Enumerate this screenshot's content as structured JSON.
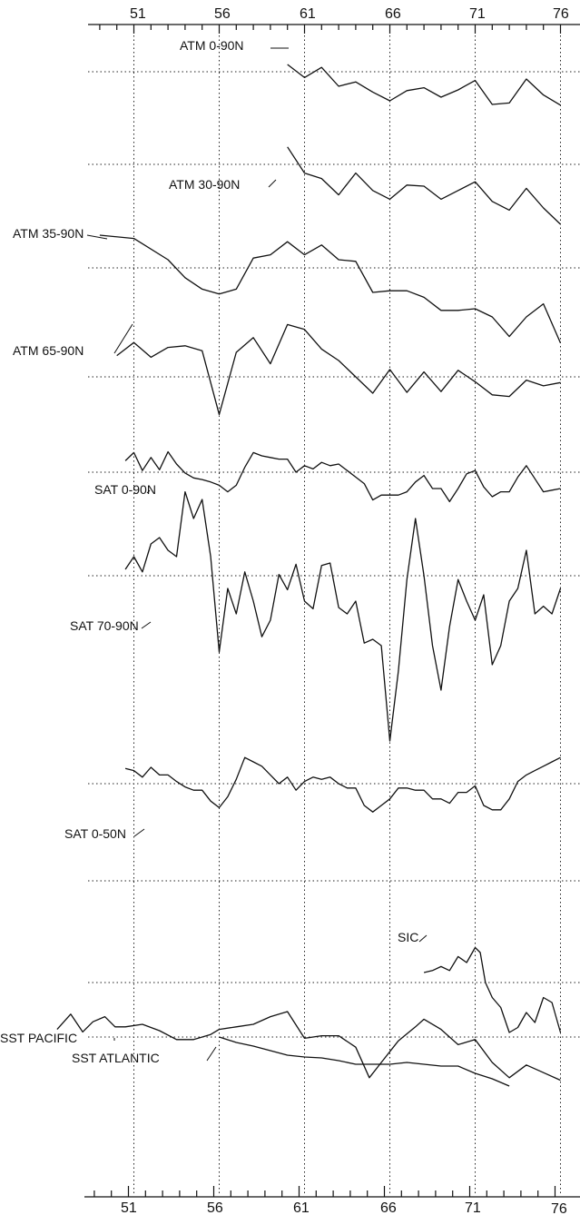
{
  "chart_data": {
    "type": "line",
    "x_ticks": [
      51,
      56,
      61,
      66,
      71,
      76
    ],
    "xlim": [
      46.5,
      76
    ],
    "grid": true,
    "series": [
      {
        "name": "ATM 0-90N",
        "x": [
          60,
          61,
          62,
          63,
          64,
          65,
          66,
          67,
          68,
          69,
          70,
          71,
          72,
          73,
          74,
          75,
          76
        ],
        "y": [
          1,
          -0.8,
          0.6,
          -2,
          -1.4,
          -2.8,
          -4,
          -2.6,
          -2.2,
          -3.5,
          -2.5,
          -1.2,
          -4.5,
          -4.3,
          -1,
          -3.2,
          -4.6
        ]
      },
      {
        "name": "ATM 30-90N",
        "x": [
          60,
          61,
          62,
          63,
          64,
          65,
          66,
          67,
          68,
          69,
          70,
          71,
          72,
          73,
          74,
          75,
          76
        ],
        "y": [
          1.6,
          -0.8,
          -1.3,
          -2.8,
          -0.8,
          -2.4,
          -3.2,
          -1.9,
          -2,
          -3.2,
          -2.4,
          -1.6,
          -3.4,
          -4.2,
          -2.2,
          -4,
          -5.5
        ]
      },
      {
        "name": "ATM 35-90N",
        "x": [
          49,
          51,
          53,
          54,
          55,
          56,
          57,
          58,
          59,
          60,
          61,
          62,
          63,
          64,
          65,
          66,
          67,
          68,
          69,
          70,
          71,
          72,
          73,
          74,
          75,
          76
        ],
        "y": [
          2,
          1.8,
          0.5,
          -0.6,
          -1.3,
          -1.6,
          -1.3,
          0.6,
          0.8,
          1.6,
          0.8,
          1.4,
          0.5,
          0.4,
          -1.5,
          -1.4,
          -1.4,
          -1.8,
          -2.6,
          -2.6,
          -2.5,
          -3,
          -4.2,
          -3,
          -2.2,
          -4.6
        ]
      },
      {
        "name": "ATM 65-90N",
        "x": [
          50,
          51,
          52,
          53,
          54,
          55,
          56,
          57,
          58,
          59,
          60,
          61,
          62,
          63,
          64,
          65,
          66,
          67,
          68,
          69,
          70,
          71,
          72,
          73,
          74,
          75,
          76
        ],
        "y": [
          2.6,
          4.2,
          2.4,
          3.6,
          3.8,
          3.2,
          -4.6,
          3,
          4.8,
          1.6,
          6.4,
          5.8,
          3.4,
          2,
          0,
          -2,
          0.9,
          -1.9,
          0.6,
          -1.8,
          0.8,
          -0.6,
          -2.2,
          -2.4,
          -0.4,
          -1.1,
          -0.7
        ]
      },
      {
        "name": "SAT 0-90N",
        "x": [
          50.5,
          51.0,
          51.5,
          52.0,
          52.5,
          53.0,
          53.5,
          54.0,
          54.5,
          55.0,
          55.5,
          56.0,
          56.5,
          57.0,
          57.5,
          58.0,
          58.5,
          59.0,
          59.5,
          60.0,
          60.5,
          61.0,
          61.5,
          62.0,
          62.5,
          63.0,
          63.5,
          64.0,
          64.5,
          65.0,
          65.5,
          66.0,
          66.5,
          67.0,
          67.5,
          68.0,
          68.5,
          69.0,
          69.5,
          70.0,
          70.5,
          71.0,
          71.5,
          72.0,
          72.5,
          73.0,
          73.5,
          74.0,
          74.5,
          75.0,
          75.5,
          76.0
        ],
        "y": [
          1.4,
          2.4,
          0.2,
          1.8,
          0.3,
          2.5,
          1.0,
          -0.1,
          -0.7,
          -0.9,
          -1.2,
          -1.6,
          -2.4,
          -1.6,
          0.6,
          2.4,
          2.0,
          1.8,
          1.6,
          1.6,
          0.0,
          0.8,
          0.4,
          1.2,
          0.8,
          1.0,
          0.2,
          -0.6,
          -1.4,
          -3.4,
          -2.8,
          -2.8,
          -2.8,
          -2.4,
          -1.2,
          -0.4,
          -2.0,
          -2.0,
          -3.6,
          -2.0,
          -0.2,
          0.2,
          -1.8,
          -3.0,
          -2.4,
          -2.4,
          -0.6,
          0.8,
          -0.8,
          -2.4,
          -2.2,
          -2.0
        ]
      },
      {
        "name": "SAT 70-90N",
        "x": [
          50.5,
          51.0,
          51.5,
          52.0,
          52.5,
          53.0,
          53.5,
          54.0,
          54.5,
          55.0,
          55.5,
          56.0,
          56.5,
          57.0,
          57.5,
          58.0,
          58.5,
          59.0,
          59.5,
          60.0,
          60.5,
          61.0,
          61.5,
          62.0,
          62.5,
          63.0,
          63.5,
          64.0,
          64.5,
          65.0,
          65.5,
          66.0,
          66.5,
          67.0,
          67.5,
          68.0,
          68.5,
          69.0,
          69.5,
          70.0,
          70.5,
          71.0,
          71.5,
          72.0,
          72.5,
          73.0,
          73.5,
          74.0,
          74.5,
          75.0,
          75.5,
          76.0
        ],
        "y": [
          0.5,
          1.5,
          0.3,
          2.5,
          3.0,
          2.0,
          1.5,
          6.6,
          4.5,
          6.0,
          1.5,
          -6.0,
          -1.0,
          -3.0,
          0.3,
          -2.0,
          -4.8,
          -3.5,
          0.1,
          -1.1,
          0.9,
          -2.0,
          -2.6,
          0.8,
          1.0,
          -2.5,
          -3.0,
          -2.0,
          -5.3,
          -5.0,
          -5.5,
          -13.0,
          -7.5,
          -0.3,
          4.5,
          0.0,
          -5.5,
          -9.0,
          -4.0,
          -0.3,
          -2.0,
          -3.5,
          -1.5,
          -7.0,
          -5.5,
          -2.0,
          -1.0,
          2.0,
          -3.0,
          -2.4,
          -3.0,
          -1.0
        ]
      },
      {
        "name": "SAT 0-50N",
        "x": [
          50.5,
          51.0,
          51.5,
          52.0,
          52.5,
          53.0,
          53.5,
          54.0,
          54.5,
          55.0,
          55.5,
          56.0,
          56.5,
          57.0,
          57.5,
          58.0,
          58.5,
          59.0,
          59.5,
          60.0,
          60.5,
          61.0,
          61.5,
          62.0,
          62.5,
          63.0,
          63.5,
          64.0,
          64.5,
          65.0,
          65.5,
          66.0,
          66.5,
          67.0,
          67.5,
          68.0,
          68.5,
          69.0,
          69.5,
          70.0,
          70.5,
          71.0,
          71.5,
          72.0,
          72.5,
          73.0,
          73.5,
          74.0,
          74.5,
          75.0,
          75.5,
          76.0
        ],
        "y": [
          1.4,
          1.2,
          0.6,
          1.5,
          0.8,
          0.8,
          0.2,
          -0.3,
          -0.6,
          -0.6,
          -1.6,
          -2.2,
          -1.2,
          0.4,
          2.4,
          2.0,
          1.6,
          0.8,
          0.0,
          0.6,
          -0.6,
          0.2,
          0.6,
          0.4,
          0.6,
          0.0,
          -0.4,
          -0.4,
          -2.0,
          -2.6,
          -2.0,
          -1.4,
          -0.4,
          -0.4,
          -0.6,
          -0.6,
          -1.4,
          -1.4,
          -1.8,
          -0.8,
          -0.8,
          -0.2,
          -2.0,
          -2.4,
          -2.4,
          -1.4,
          0.2,
          0.8,
          1.2,
          1.6,
          2.0,
          2.4
        ]
      },
      {
        "name": "SIC",
        "x": [
          68.0,
          68.5,
          69.0,
          69.5,
          70.0,
          70.5,
          71.0,
          71.3,
          71.6,
          72.0,
          72.5,
          73.0,
          73.5,
          74.0,
          74.5,
          75.0,
          75.5,
          76.0
        ],
        "y": [
          1.0,
          1.2,
          1.6,
          1.2,
          2.6,
          2.0,
          3.5,
          3.0,
          0.0,
          -1.5,
          -2.5,
          -5.0,
          -4.5,
          -3.0,
          -4.0,
          -1.5,
          -2.0,
          -5.0
        ]
      },
      {
        "name": "SST PACIFIC",
        "x": [
          46.5,
          47.3,
          48.0,
          48.6,
          49.3,
          49.9,
          50.5,
          51.5,
          52.5,
          53.5,
          54.5,
          55.5,
          56.0,
          57.0,
          58.0,
          59.0,
          60.0,
          61.0,
          62.0,
          63.0,
          64.0,
          64.8,
          65.5,
          66.5,
          67.5,
          68.0,
          69.0,
          70.0,
          71.0,
          72.0,
          73.0,
          74.0,
          75.0,
          76.0
        ],
        "y": [
          0.6,
          1.8,
          0.4,
          1.2,
          1.6,
          0.8,
          0.8,
          1.0,
          0.5,
          -0.2,
          -0.2,
          0.2,
          0.6,
          0.8,
          1.0,
          1.6,
          2.0,
          -0.1,
          0.1,
          0.1,
          -0.8,
          -3.2,
          -2.0,
          -0.3,
          0.8,
          1.4,
          0.6,
          -0.6,
          -0.2,
          -2.0,
          -3.2,
          -2.2,
          -2.8,
          -3.4
        ]
      },
      {
        "name": "SST ATLANTIC",
        "x": [
          56.0,
          57.0,
          58.0,
          60.0,
          61.0,
          62.0,
          63.0,
          64.0,
          65.0,
          66.0,
          67.0,
          68.0,
          69.0,
          70.0,
          71.0,
          72.0,
          73.0
        ],
        "y": [
          0.0,
          -0.6,
          -1.0,
          -2.0,
          -2.2,
          -2.3,
          -2.6,
          -3.0,
          -3.0,
          -3.0,
          -2.8,
          -3.0,
          -3.2,
          -3.2,
          -4.0,
          -4.6,
          -5.4
        ]
      }
    ]
  }
}
